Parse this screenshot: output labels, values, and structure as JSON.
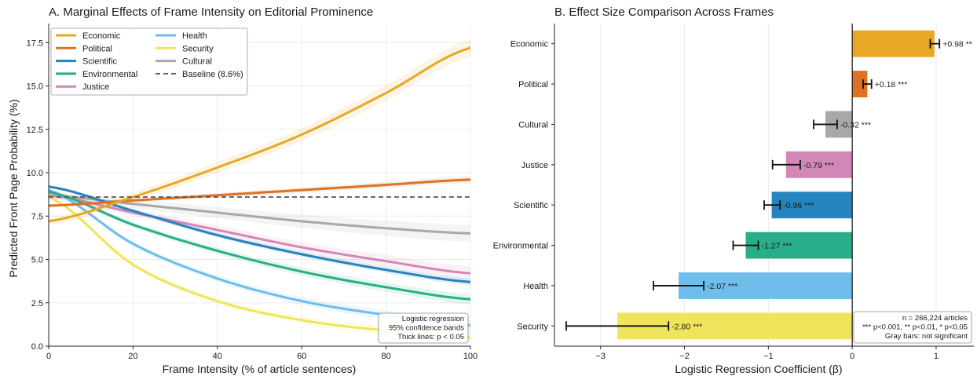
{
  "panel_a": {
    "title": "A. Marginal Effects of Frame Intensity on Editorial Prominence",
    "xlabel": "Frame Intensity (% of article sentences)",
    "ylabel": "Predicted Front Page Probability (%)",
    "note": [
      "Logistic regression",
      "95% confidence bands",
      "Thick lines: p < 0.05"
    ],
    "baseline_label": "Baseline (8.6%)"
  },
  "panel_b": {
    "title": "B. Effect Size Comparison Across Frames",
    "xlabel": "Logistic Regression Coefficient (β)",
    "note": [
      "n = 266,224 articles",
      "*** p<0.001, ** p<0.01, * p<0.05",
      "Gray bars: not significant"
    ]
  },
  "colors": {
    "Economic": "#E8A825",
    "Political": "#DD7226",
    "Scientific": "#2583BE",
    "Environmental": "#28AE88",
    "Justice": "#D288B7",
    "Health": "#6EBDEA",
    "Security": "#F0E45C",
    "Cultural": "#A8A8A8",
    "baseline": "#555555"
  },
  "chart_data": [
    {
      "type": "line",
      "title": "A. Marginal Effects of Frame Intensity on Editorial Prominence",
      "xlabel": "Frame Intensity (% of article sentences)",
      "ylabel": "Predicted Front Page Probability (%)",
      "xlim": [
        0,
        100
      ],
      "ylim": [
        0,
        18.6
      ],
      "xticks": [
        0,
        20,
        40,
        60,
        80,
        100
      ],
      "yticks": [
        0.0,
        2.5,
        5.0,
        7.5,
        10.0,
        12.5,
        15.0,
        17.5
      ],
      "grid": true,
      "legend_position": "top-left",
      "baseline": 8.6,
      "series": [
        {
          "name": "Economic",
          "x": [
            0,
            20,
            40,
            60,
            80,
            100
          ],
          "y": [
            7.2,
            8.6,
            10.3,
            12.2,
            14.6,
            17.2
          ],
          "ci": 0.5
        },
        {
          "name": "Political",
          "x": [
            0,
            20,
            40,
            60,
            80,
            100
          ],
          "y": [
            8.1,
            8.4,
            8.7,
            9.0,
            9.3,
            9.6
          ],
          "ci": 0.2
        },
        {
          "name": "Scientific",
          "x": [
            0,
            20,
            40,
            60,
            80,
            100
          ],
          "y": [
            9.2,
            7.8,
            6.4,
            5.3,
            4.4,
            3.7
          ],
          "ci": 0.2
        },
        {
          "name": "Environmental",
          "x": [
            0,
            20,
            40,
            60,
            80,
            100
          ],
          "y": [
            8.9,
            7.0,
            5.5,
            4.3,
            3.4,
            2.7
          ],
          "ci": 0.3
        },
        {
          "name": "Justice",
          "x": [
            0,
            20,
            40,
            60,
            80,
            100
          ],
          "y": [
            8.7,
            7.7,
            6.7,
            5.7,
            4.9,
            4.2
          ],
          "ci": 0.4
        },
        {
          "name": "Health",
          "x": [
            0,
            20,
            40,
            60,
            80,
            100
          ],
          "y": [
            9.0,
            5.9,
            3.9,
            2.6,
            1.8,
            1.2
          ],
          "ci": 0.3
        },
        {
          "name": "Security",
          "x": [
            0,
            20,
            40,
            60,
            80,
            100
          ],
          "y": [
            8.6,
            4.7,
            2.6,
            1.5,
            0.9,
            0.5
          ],
          "ci": 0.3
        },
        {
          "name": "Cultural",
          "x": [
            0,
            20,
            40,
            60,
            80,
            100
          ],
          "y": [
            8.7,
            8.2,
            7.7,
            7.2,
            6.8,
            6.5
          ],
          "ci": 0.5
        }
      ]
    },
    {
      "type": "bar",
      "orientation": "horizontal",
      "title": "B. Effect Size Comparison Across Frames",
      "xlabel": "Logistic Regression Coefficient (β)",
      "xlim": [
        -3.55,
        1.45
      ],
      "xticks": [
        -3,
        -2,
        -1,
        0,
        1
      ],
      "grid": true,
      "categories": [
        "Economic",
        "Political",
        "Cultural",
        "Justice",
        "Scientific",
        "Environmental",
        "Health",
        "Security"
      ],
      "values": [
        0.98,
        0.18,
        -0.32,
        -0.79,
        -0.96,
        -1.27,
        -2.07,
        -2.8
      ],
      "ci_low": [
        0.93,
        0.13,
        -0.46,
        -0.95,
        -1.05,
        -1.42,
        -2.37,
        -3.41
      ],
      "ci_high": [
        1.04,
        0.23,
        -0.18,
        -0.62,
        -0.86,
        -1.12,
        -1.77,
        -2.19
      ],
      "labels": [
        "+0.98 **",
        "+0.18 ***",
        "-0.32 ***",
        "-0.79 ***",
        "-0.96 ***",
        "-1.27 ***",
        "-2.07 ***",
        "-2.80 ***"
      ]
    }
  ]
}
